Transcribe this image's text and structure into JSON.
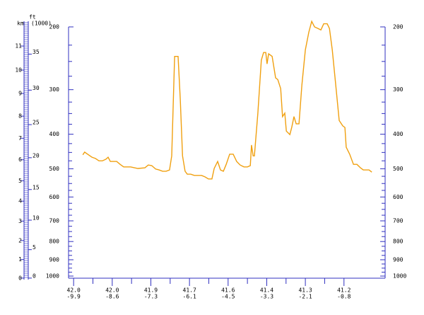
{
  "chart_data": {
    "type": "line",
    "km_label": "km",
    "ft_label": "ft",
    "ft_unit": "(1000)",
    "x": [
      4.5,
      5.1,
      6.3,
      7.4,
      8.5,
      9.6,
      10.7,
      11.8,
      12.5,
      13.2,
      15.2,
      16.3,
      17.4,
      19.6,
      21.9,
      24.1,
      25.2,
      26.3,
      27.5,
      28.6,
      29.7,
      30.8,
      31.9,
      32.6,
      33.5,
      34.6,
      35.3,
      36.0,
      36.8,
      37.5,
      38.6,
      39.7,
      42.0,
      43.1,
      44.2,
      45.3,
      46.0,
      47.1,
      48.0,
      48.9,
      49.8,
      50.9,
      52.0,
      53.1,
      54.2,
      55.4,
      56.5,
      57.4,
      57.8,
      58.3,
      58.7,
      59.8,
      60.9,
      61.6,
      62.3,
      62.7,
      63.2,
      64.3,
      65.4,
      66.1,
      67.0,
      67.6,
      68.3,
      68.8,
      69.9,
      70.5,
      71.2,
      71.9,
      72.8,
      73.7,
      74.8,
      75.9,
      76.8,
      77.7,
      78.8,
      79.7,
      80.6,
      81.7,
      82.4,
      83.3,
      84.4,
      85.5,
      86.6,
      87.3,
      87.7,
      88.8,
      90.0,
      91.1,
      92.2,
      93.1,
      94.0,
      94.9,
      95.8
    ],
    "series": [
      {
        "color": "#f0a010",
        "values": [
          457,
          449,
          457,
          464,
          468,
          475,
          475,
          470,
          464,
          477,
          477,
          486,
          494,
          494,
          499,
          497,
          488,
          490,
          501,
          504,
          508,
          508,
          504,
          460,
          242,
          242,
          319,
          460,
          508,
          518,
          518,
          522,
          522,
          527,
          534,
          534,
          499,
          477,
          504,
          508,
          486,
          455,
          455,
          477,
          488,
          494,
          494,
          490,
          429,
          460,
          460,
          349,
          248,
          236,
          236,
          254,
          238,
          242,
          278,
          281,
          298,
          357,
          349,
          392,
          401,
          383,
          357,
          374,
          374,
          291,
          232,
          207,
          193,
          200,
          202,
          204,
          196,
          196,
          202,
          232,
          291,
          366,
          379,
          383,
          435,
          455,
          486,
          486,
          497,
          504,
          504,
          504,
          511
        ]
      }
    ],
    "xlim": [
      0,
      100
    ],
    "xticks": [
      1.6,
      13.8,
      26.0,
      38.2,
      50.4,
      62.6,
      74.8,
      87.0
    ],
    "x_labels_lat": [
      "42.0",
      "42.0",
      "41.9",
      "41.7",
      "41.6",
      "41.4",
      "41.3",
      "41.2"
    ],
    "x_labels_lon": [
      "-9.9",
      "-8.6",
      "-7.3",
      "-6.1",
      "-4.5",
      "-3.3",
      "-2.1",
      "-0.8"
    ],
    "ylim": [
      1000,
      200
    ],
    "log": true,
    "yticks": [
      200,
      300,
      400,
      500,
      600,
      700,
      800,
      900,
      1000
    ],
    "yticks_minor": [
      225,
      250,
      275,
      325,
      350,
      375,
      425,
      450,
      475,
      525,
      550,
      575,
      625,
      650,
      675,
      725,
      750,
      775,
      825,
      850,
      875,
      925,
      950,
      975
    ],
    "km_ticks": [
      0,
      1,
      2,
      3,
      4,
      5,
      6,
      7,
      8,
      9,
      10,
      11
    ],
    "ft_ticks": [
      0,
      5,
      10,
      15,
      20,
      25,
      30,
      35
    ],
    "axis_color": "#3030c0"
  }
}
